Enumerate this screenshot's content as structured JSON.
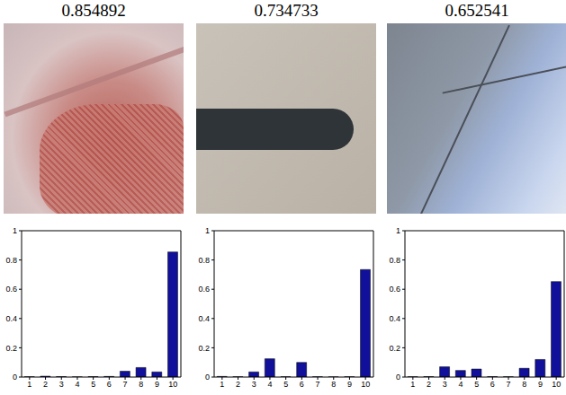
{
  "chart_data": [
    {
      "type": "bar",
      "title": "0.854892",
      "categories": [
        "1",
        "2",
        "3",
        "4",
        "5",
        "6",
        "7",
        "8",
        "9",
        "10"
      ],
      "values": [
        0.002,
        0.006,
        0.003,
        0.001,
        0.003,
        0.004,
        0.04,
        0.065,
        0.035,
        0.854892
      ],
      "color": "#10109a",
      "ylim": [
        0,
        1
      ],
      "yticks": [
        0,
        0.2,
        0.4,
        0.6,
        0.8,
        1
      ]
    },
    {
      "type": "bar",
      "title": "0.734733",
      "categories": [
        "1",
        "2",
        "3",
        "4",
        "5",
        "6",
        "7",
        "8",
        "9",
        "10"
      ],
      "values": [
        0.004,
        0.002,
        0.035,
        0.125,
        0.002,
        0.1,
        0.002,
        0.001,
        0.002,
        0.734733
      ],
      "color": "#10109a",
      "ylim": [
        0,
        1
      ],
      "yticks": [
        0,
        0.2,
        0.4,
        0.6,
        0.8,
        1
      ]
    },
    {
      "type": "bar",
      "title": "0.652541",
      "categories": [
        "1",
        "2",
        "3",
        "4",
        "5",
        "6",
        "7",
        "8",
        "9",
        "10"
      ],
      "values": [
        0.002,
        0.003,
        0.07,
        0.045,
        0.055,
        0.003,
        0.002,
        0.06,
        0.12,
        0.652541
      ],
      "color": "#10109a",
      "ylim": [
        0,
        1
      ],
      "yticks": [
        0,
        0.2,
        0.4,
        0.6,
        0.8,
        1
      ]
    }
  ]
}
